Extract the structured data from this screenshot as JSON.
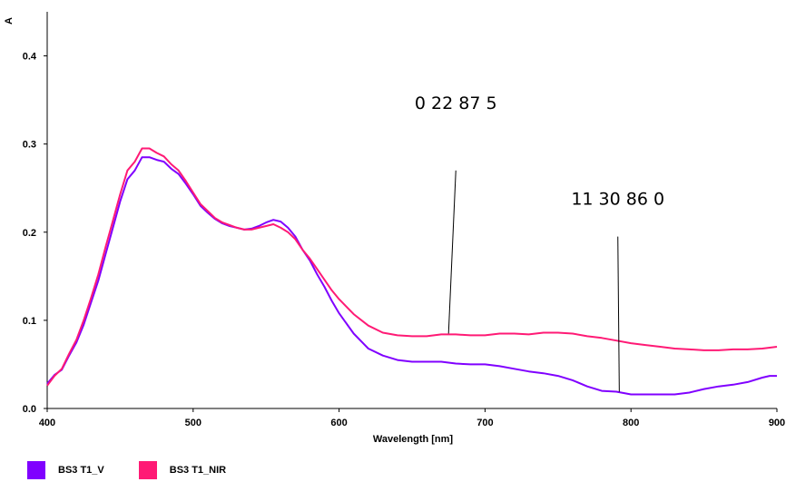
{
  "chart_data": {
    "type": "line",
    "xlabel": "Wavelength [nm]",
    "ylabel": "A",
    "xlim": [
      400,
      900
    ],
    "ylim": [
      0,
      0.45
    ],
    "x_ticks": [
      "400",
      "500",
      "600",
      "700",
      "800",
      "900"
    ],
    "y_ticks": [
      "0.0",
      "0.1",
      "0.2",
      "0.3",
      "0.4"
    ],
    "grid": false,
    "legend_position": "bottom-left",
    "series": [
      {
        "name": "BS3 T1_V",
        "color": "#8000ff",
        "x": [
          400,
          405,
          410,
          415,
          420,
          425,
          430,
          435,
          440,
          445,
          450,
          455,
          460,
          465,
          470,
          475,
          480,
          485,
          490,
          495,
          500,
          505,
          510,
          515,
          520,
          525,
          530,
          535,
          540,
          545,
          550,
          555,
          560,
          565,
          570,
          575,
          580,
          585,
          590,
          595,
          600,
          610,
          620,
          630,
          640,
          650,
          660,
          670,
          680,
          690,
          700,
          710,
          720,
          730,
          740,
          750,
          760,
          770,
          780,
          790,
          800,
          810,
          820,
          830,
          840,
          850,
          860,
          870,
          880,
          890,
          895,
          900
        ],
        "y": [
          0.028,
          0.038,
          0.044,
          0.06,
          0.075,
          0.095,
          0.12,
          0.145,
          0.175,
          0.205,
          0.235,
          0.26,
          0.27,
          0.285,
          0.285,
          0.282,
          0.28,
          0.272,
          0.266,
          0.255,
          0.243,
          0.23,
          0.222,
          0.215,
          0.21,
          0.207,
          0.205,
          0.203,
          0.204,
          0.207,
          0.211,
          0.214,
          0.212,
          0.205,
          0.195,
          0.18,
          0.168,
          0.152,
          0.138,
          0.122,
          0.108,
          0.085,
          0.068,
          0.06,
          0.055,
          0.053,
          0.053,
          0.053,
          0.051,
          0.05,
          0.05,
          0.048,
          0.045,
          0.042,
          0.04,
          0.037,
          0.032,
          0.025,
          0.02,
          0.019,
          0.016,
          0.016,
          0.016,
          0.016,
          0.018,
          0.022,
          0.025,
          0.027,
          0.03,
          0.035,
          0.037,
          0.037
        ]
      },
      {
        "name": "BS3 T1_NIR",
        "color": "#ff1a75",
        "x": [
          400,
          405,
          410,
          415,
          420,
          425,
          430,
          435,
          440,
          445,
          450,
          455,
          460,
          465,
          470,
          475,
          480,
          485,
          490,
          495,
          500,
          505,
          510,
          515,
          520,
          525,
          530,
          535,
          540,
          545,
          550,
          555,
          560,
          565,
          570,
          575,
          580,
          585,
          590,
          595,
          600,
          610,
          620,
          630,
          640,
          650,
          660,
          670,
          680,
          690,
          700,
          710,
          720,
          730,
          740,
          750,
          760,
          770,
          780,
          790,
          800,
          810,
          820,
          830,
          840,
          850,
          860,
          870,
          880,
          890,
          895,
          900
        ],
        "y": [
          0.026,
          0.037,
          0.045,
          0.062,
          0.078,
          0.1,
          0.125,
          0.152,
          0.183,
          0.213,
          0.243,
          0.27,
          0.28,
          0.295,
          0.295,
          0.29,
          0.286,
          0.277,
          0.27,
          0.258,
          0.245,
          0.232,
          0.224,
          0.216,
          0.211,
          0.208,
          0.205,
          0.203,
          0.203,
          0.205,
          0.207,
          0.209,
          0.205,
          0.2,
          0.192,
          0.18,
          0.17,
          0.158,
          0.146,
          0.134,
          0.124,
          0.107,
          0.094,
          0.086,
          0.083,
          0.082,
          0.082,
          0.084,
          0.084,
          0.083,
          0.083,
          0.085,
          0.085,
          0.084,
          0.086,
          0.086,
          0.085,
          0.082,
          0.08,
          0.077,
          0.074,
          0.072,
          0.07,
          0.068,
          0.067,
          0.066,
          0.066,
          0.067,
          0.067,
          0.068,
          0.069,
          0.07
        ]
      }
    ],
    "annotations": [
      {
        "text": "0   22   87  5",
        "point": [
          675,
          0.085
        ],
        "tip": [
          680,
          0.27
        ]
      },
      {
        "text": "11   30    86   0",
        "point": [
          792,
          0.019
        ],
        "tip": [
          791,
          0.195
        ]
      }
    ]
  },
  "legend": [
    {
      "label": "BS3 T1_V",
      "color": "#8000ff"
    },
    {
      "label": "BS3 T1_NIR",
      "color": "#ff1a75"
    }
  ]
}
